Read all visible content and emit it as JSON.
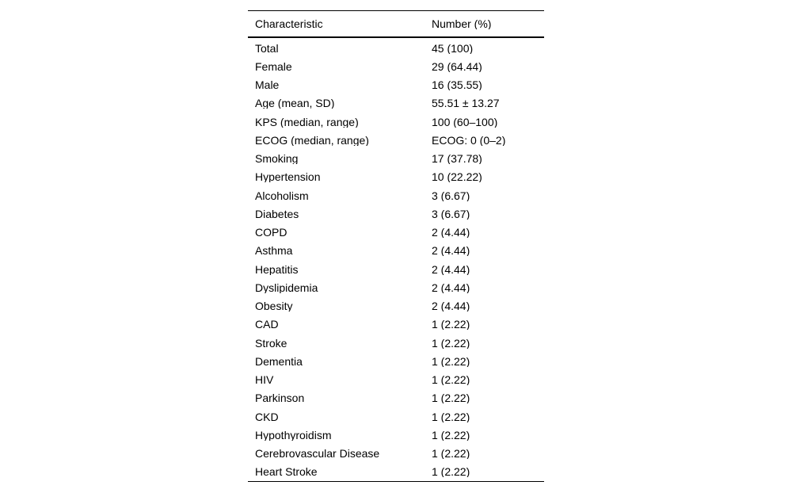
{
  "table": {
    "headers": [
      "Characteristic",
      "Number (%)"
    ],
    "rows": [
      {
        "characteristic": "Total",
        "number": "45 (100)"
      },
      {
        "characteristic": "Female",
        "number": "29 (64.44)"
      },
      {
        "characteristic": "Male",
        "number": "16 (35.55)"
      },
      {
        "characteristic": "Age (mean, SD)",
        "number": "55.51 ± 13.27"
      },
      {
        "characteristic": "KPS (median, range)",
        "number": "100 (60–100)"
      },
      {
        "characteristic": "ECOG (median, range)",
        "number": "ECOG: 0 (0–2)"
      },
      {
        "characteristic": "Smoking",
        "number": "17 (37.78)"
      },
      {
        "characteristic": "Hypertension",
        "number": "10 (22.22)"
      },
      {
        "characteristic": "Alcoholism",
        "number": "3 (6.67)"
      },
      {
        "characteristic": "Diabetes",
        "number": "3 (6.67)"
      },
      {
        "characteristic": "COPD",
        "number": "2 (4.44)"
      },
      {
        "characteristic": "Asthma",
        "number": "2 (4.44)"
      },
      {
        "characteristic": "Hepatitis",
        "number": "2 (4.44)"
      },
      {
        "characteristic": "Dyslipidemia",
        "number": "2 (4.44)"
      },
      {
        "characteristic": "Obesity",
        "number": "2 (4.44)"
      },
      {
        "characteristic": "CAD",
        "number": "1 (2.22)"
      },
      {
        "characteristic": "Stroke",
        "number": "1 (2.22)"
      },
      {
        "characteristic": "Dementia",
        "number": "1 (2.22)"
      },
      {
        "characteristic": "HIV",
        "number": "1 (2.22)"
      },
      {
        "characteristic": "Parkinson",
        "number": "1 (2.22)"
      },
      {
        "characteristic": "CKD",
        "number": "1 (2.22)"
      },
      {
        "characteristic": "Hypothyroidism",
        "number": "1 (2.22)"
      },
      {
        "characteristic": "Cerebrovascular Disease",
        "number": "1 (2.22)"
      },
      {
        "characteristic": "Heart Stroke",
        "number": "1 (2.22)"
      }
    ],
    "colors": {
      "text": "#000000",
      "rule": "#000000",
      "background": "#ffffff"
    }
  }
}
